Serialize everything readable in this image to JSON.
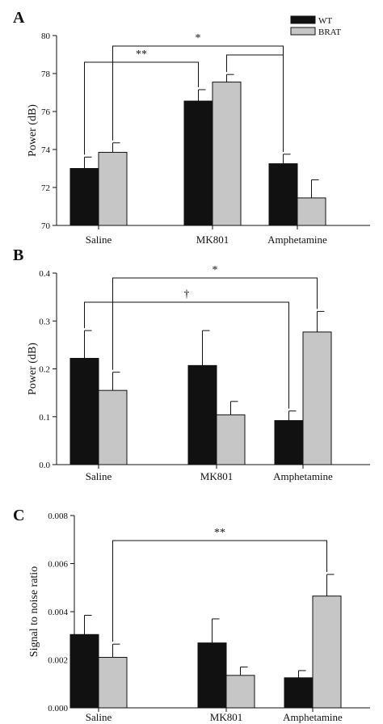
{
  "legend": {
    "items": [
      {
        "label": "WT",
        "color": "#111111"
      },
      {
        "label": "BRAT",
        "color": "#c6c6c6"
      }
    ]
  },
  "chart_data": [
    {
      "panel_label": "A",
      "type": "bar",
      "ylabel": "Power (dB)",
      "ylim": [
        70,
        80
      ],
      "yticks": [
        "70",
        "72",
        "74",
        "76",
        "78",
        "80"
      ],
      "categories": [
        "Saline",
        "MK801",
        "Amphetamine"
      ],
      "series": [
        {
          "name": "WT",
          "color": "#111111",
          "values": [
            73.0,
            76.55,
            73.25
          ],
          "errors": [
            0.6,
            0.6,
            0.5
          ]
        },
        {
          "name": "BRAT",
          "color": "#c6c6c6",
          "values": [
            73.85,
            77.55,
            71.45
          ],
          "errors": [
            0.5,
            0.4,
            0.95
          ]
        }
      ],
      "significance": [
        {
          "label": "*",
          "from": {
            "category": 0,
            "series": 1
          },
          "to": {
            "category": 2,
            "series": 0
          }
        },
        {
          "label": "**",
          "from": {
            "category": 0,
            "series": 0
          },
          "to": {
            "category": 1,
            "series": 0
          }
        },
        {
          "label": "",
          "from": {
            "category": 1,
            "series": 1
          },
          "to": {
            "category": 2,
            "series": 0
          }
        }
      ]
    },
    {
      "panel_label": "B",
      "type": "bar",
      "ylabel": "Power (dB)",
      "ylim": [
        0.0,
        0.4
      ],
      "yticks": [
        "0.0",
        "0.1",
        "0.2",
        "0.3",
        "0.4"
      ],
      "categories": [
        "Saline",
        "MK801",
        "Amphetamine"
      ],
      "series": [
        {
          "name": "WT",
          "color": "#111111",
          "values": [
            0.222,
            0.207,
            0.092
          ],
          "errors": [
            0.058,
            0.073,
            0.02
          ]
        },
        {
          "name": "BRAT",
          "color": "#c6c6c6",
          "values": [
            0.155,
            0.104,
            0.277
          ],
          "errors": [
            0.038,
            0.028,
            0.043
          ]
        }
      ],
      "significance": [
        {
          "label": "*",
          "from": {
            "category": 0,
            "series": 1
          },
          "to": {
            "category": 2,
            "series": 1
          }
        },
        {
          "label": "†",
          "from": {
            "category": 0,
            "series": 0
          },
          "to": {
            "category": 2,
            "series": 0
          }
        }
      ]
    },
    {
      "panel_label": "C",
      "type": "bar",
      "ylabel": "Signal to noise ratio",
      "ylim": [
        0.0,
        0.008
      ],
      "yticks": [
        "0.000",
        "0.002",
        "0.004",
        "0.006",
        "0.008"
      ],
      "categories": [
        "Saline",
        "MK801",
        "Amphetamine"
      ],
      "series": [
        {
          "name": "WT",
          "color": "#111111",
          "values": [
            0.00305,
            0.0027,
            0.00125
          ],
          "errors": [
            0.0008,
            0.001,
            0.0003
          ]
        },
        {
          "name": "BRAT",
          "color": "#c6c6c6",
          "values": [
            0.0021,
            0.00135,
            0.00465
          ],
          "errors": [
            0.00055,
            0.00035,
            0.0009
          ]
        }
      ],
      "significance": [
        {
          "label": "**",
          "from": {
            "category": 0,
            "series": 1
          },
          "to": {
            "category": 2,
            "series": 1
          }
        }
      ]
    }
  ]
}
